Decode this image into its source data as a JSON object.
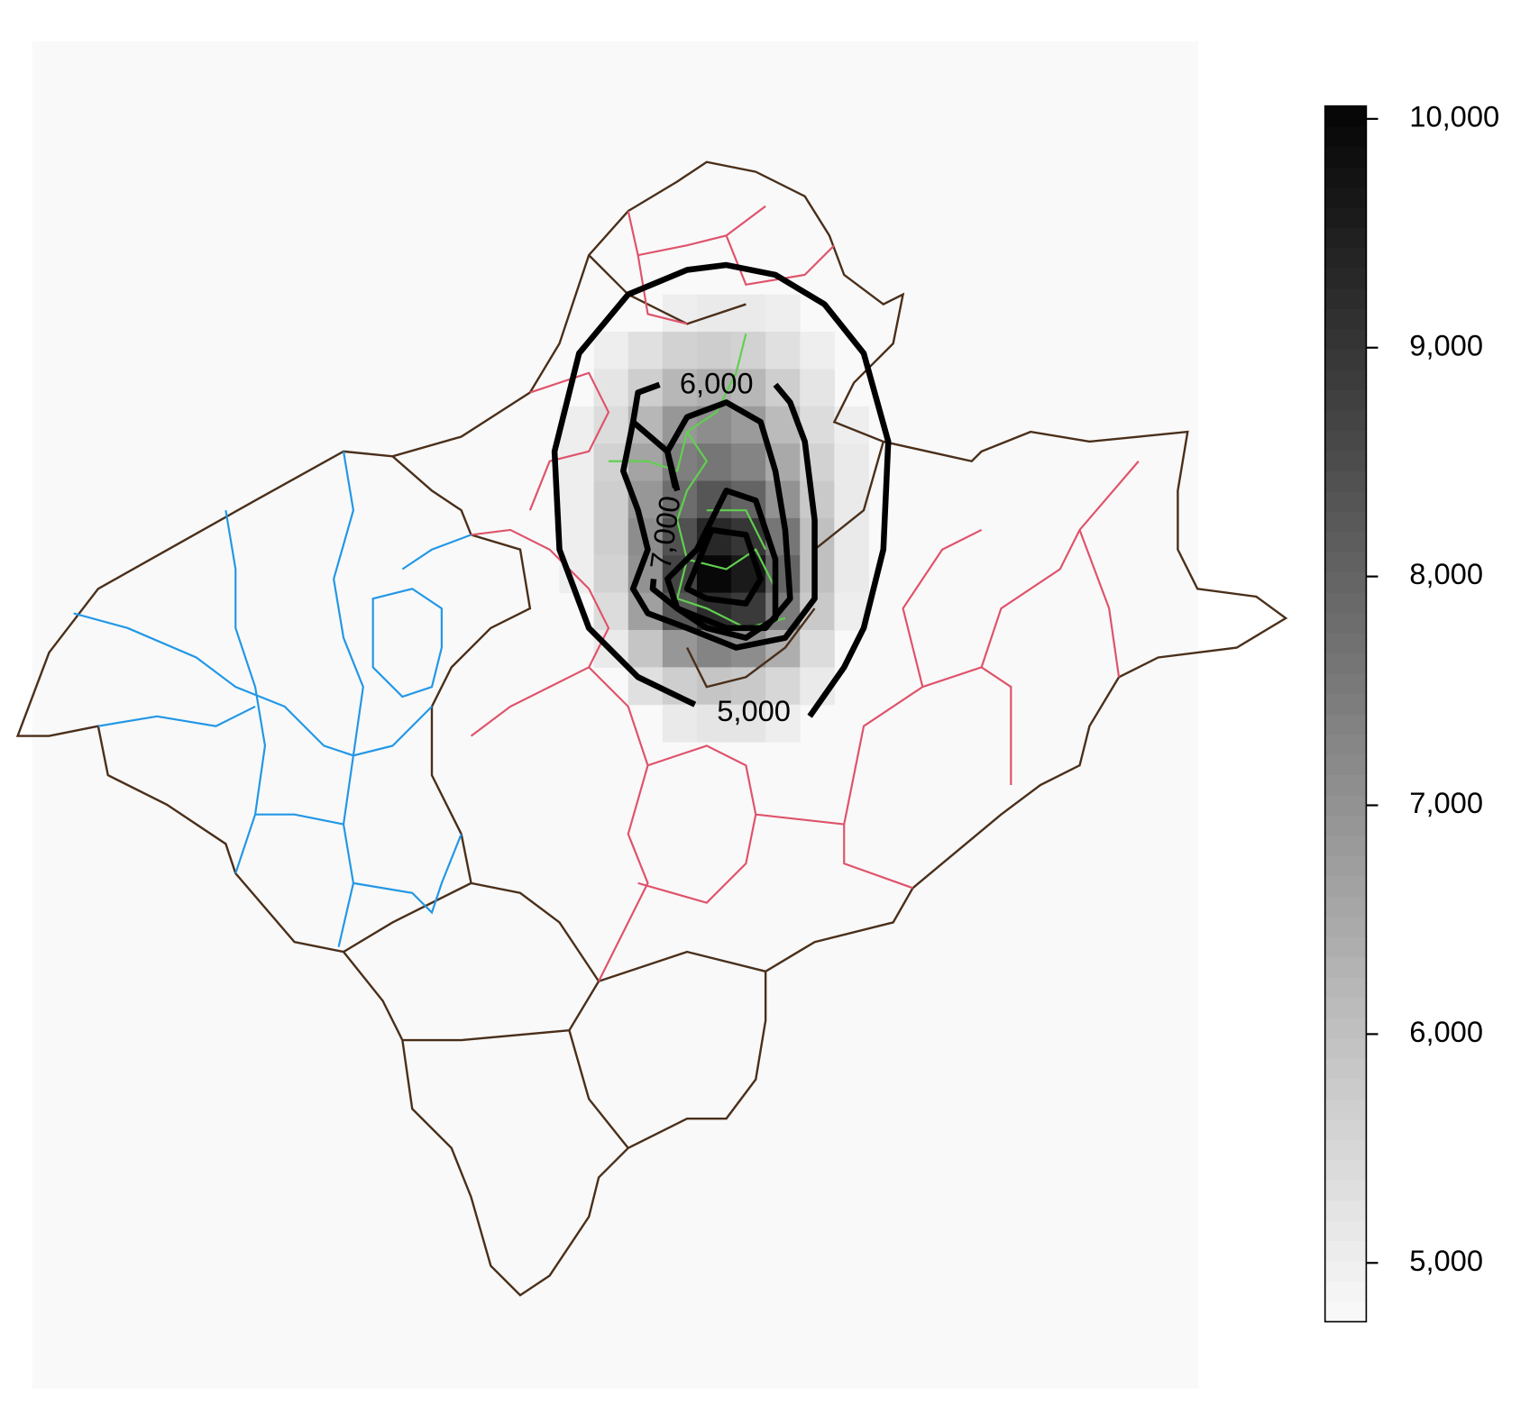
{
  "chart_data": {
    "type": "raster-map",
    "raster": {
      "values": [
        [
          null,
          null,
          null,
          5000,
          5100,
          5100,
          5000,
          null,
          null,
          null
        ],
        [
          null,
          5000,
          5300,
          5600,
          5700,
          5600,
          5300,
          5000,
          null,
          null
        ],
        [
          null,
          5200,
          5700,
          6200,
          6400,
          6200,
          5700,
          5200,
          null,
          null
        ],
        [
          5000,
          5400,
          6200,
          6900,
          7100,
          6800,
          6100,
          5400,
          5000,
          null
        ],
        [
          5000,
          5600,
          6600,
          7400,
          7600,
          7300,
          6500,
          5600,
          5100,
          null
        ],
        [
          5000,
          5700,
          6900,
          7800,
          8300,
          8000,
          7000,
          5800,
          5100,
          null
        ],
        [
          5000,
          5700,
          7100,
          8400,
          9300,
          9000,
          7600,
          6000,
          5100,
          null
        ],
        [
          5000,
          5600,
          7000,
          8700,
          10000,
          9600,
          8000,
          6000,
          5100,
          null
        ],
        [
          null,
          5400,
          6700,
          8300,
          9200,
          8900,
          7500,
          5800,
          5000,
          null
        ],
        [
          null,
          5100,
          5900,
          6900,
          7300,
          7100,
          6400,
          5400,
          null,
          null
        ],
        [
          null,
          null,
          5300,
          5700,
          5900,
          5800,
          5500,
          5100,
          null,
          null
        ],
        [
          null,
          null,
          null,
          5100,
          5200,
          5200,
          5000,
          null,
          null,
          null
        ]
      ]
    },
    "contours": [
      {
        "level": 5000,
        "label": "5,000"
      },
      {
        "level": 6000,
        "label": "6,000"
      },
      {
        "level": 7000,
        "label": "7,000"
      },
      {
        "level": 8000
      },
      {
        "level": 9000
      }
    ],
    "colorbar": {
      "lim": [
        4743,
        10056
      ],
      "ticks": [
        {
          "value": 5000,
          "label": "5,000"
        },
        {
          "value": 6000,
          "label": "6,000"
        },
        {
          "value": 7000,
          "label": "7,000"
        },
        {
          "value": 8000,
          "label": "8,000"
        },
        {
          "value": 9000,
          "label": "9,000"
        },
        {
          "value": 10000,
          "label": "10,000"
        }
      ]
    }
  }
}
